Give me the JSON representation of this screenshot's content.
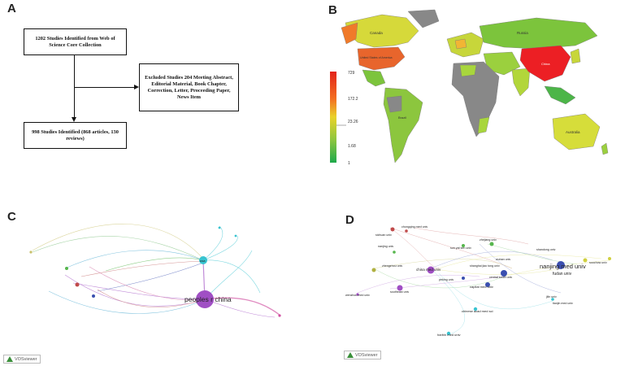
{
  "panels": {
    "a": "A",
    "b": "B",
    "c": "C",
    "d": "D"
  },
  "flowchart": {
    "box1": "1202 Studies Identified from Web of Science Core Collection",
    "box2": "Excluded Studies 204 Meeting Abstract, Editorial Material, Book Chapter, Correction, Letter, Proceeding Paper, News Item",
    "box3": "998 Studies Identified (868 articles, 130 reviews)"
  },
  "map": {
    "legend_ticks": [
      "729",
      "172.2",
      "23.26",
      "1.68",
      "1"
    ],
    "country_labels": [
      "Canada",
      "United States of America",
      "Russia",
      "China",
      "Brazil",
      "Australia"
    ]
  },
  "network_c": {
    "labels": [
      "peoples r china",
      "usa"
    ],
    "colors": {
      "china": "#a04fc4",
      "usa": "#38c3d0"
    },
    "logo": "VOSviewer"
  },
  "network_d": {
    "labels": [
      "nanjing med univ",
      "china med univ",
      "shanghai jiao tong univ",
      "chinese acad med sci",
      "fudan univ",
      "capital med univ",
      "harbin med univ",
      "peking univ",
      "zhengzhou univ",
      "sun yat sen univ",
      "soochow univ",
      "zhejiang univ",
      "sichuan univ",
      "jilin univ",
      "shandong univ",
      "tianjin med univ",
      "wenzhou med univ",
      "nanjing univ",
      "southeast univ",
      "central south univ",
      "wuhan univ",
      "chongqing med univ"
    ],
    "logo": "VOSviewer"
  }
}
